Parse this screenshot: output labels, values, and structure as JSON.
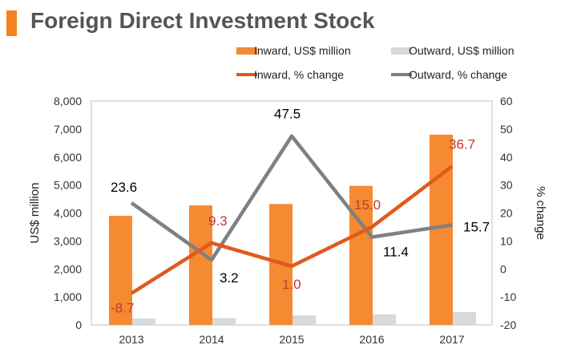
{
  "title": "Foreign Direct Investment Stock",
  "colors": {
    "inward_bar": "#f58a33",
    "outward_bar": "#d9d9d9",
    "inward_line": "#e05a1c",
    "outward_line": "#808080",
    "title_accent": "#f5821f",
    "inward_label": "#c0392b",
    "outward_label": "#000000",
    "axis_text": "#333333"
  },
  "chart_data": {
    "type": "bar",
    "categories": [
      "2013",
      "2014",
      "2015",
      "2016",
      "2017"
    ],
    "series": [
      {
        "name": "Inward, US$ million",
        "kind": "bar",
        "axis": "left",
        "values": [
          3900,
          4270,
          4320,
          4970,
          6800
        ]
      },
      {
        "name": "Outward, US$ million",
        "kind": "bar",
        "axis": "left",
        "values": [
          230,
          240,
          340,
          380,
          460
        ]
      },
      {
        "name": "Inward, % change",
        "kind": "line",
        "axis": "right",
        "values": [
          -8.7,
          9.3,
          1.0,
          15.0,
          36.7
        ],
        "labels": [
          "-8.7",
          "9.3",
          "1.0",
          "15.0",
          "36.7"
        ]
      },
      {
        "name": "Outward, % change",
        "kind": "line",
        "axis": "right",
        "values": [
          23.6,
          3.2,
          47.5,
          11.4,
          15.7
        ],
        "labels": [
          "23.6",
          "3.2",
          "47.5",
          "11.4",
          "15.7"
        ]
      }
    ],
    "ylabel": "US$ million",
    "y2label": "% change",
    "ylim": [
      0,
      8000
    ],
    "y2lim": [
      -20,
      60
    ],
    "yticks": [
      "0",
      "1,000",
      "2,000",
      "3,000",
      "4,000",
      "5,000",
      "6,000",
      "7,000",
      "8,000"
    ],
    "y2ticks": [
      "-20",
      "-10",
      "0",
      "10",
      "20",
      "30",
      "40",
      "50",
      "60"
    ],
    "legend": "top"
  }
}
